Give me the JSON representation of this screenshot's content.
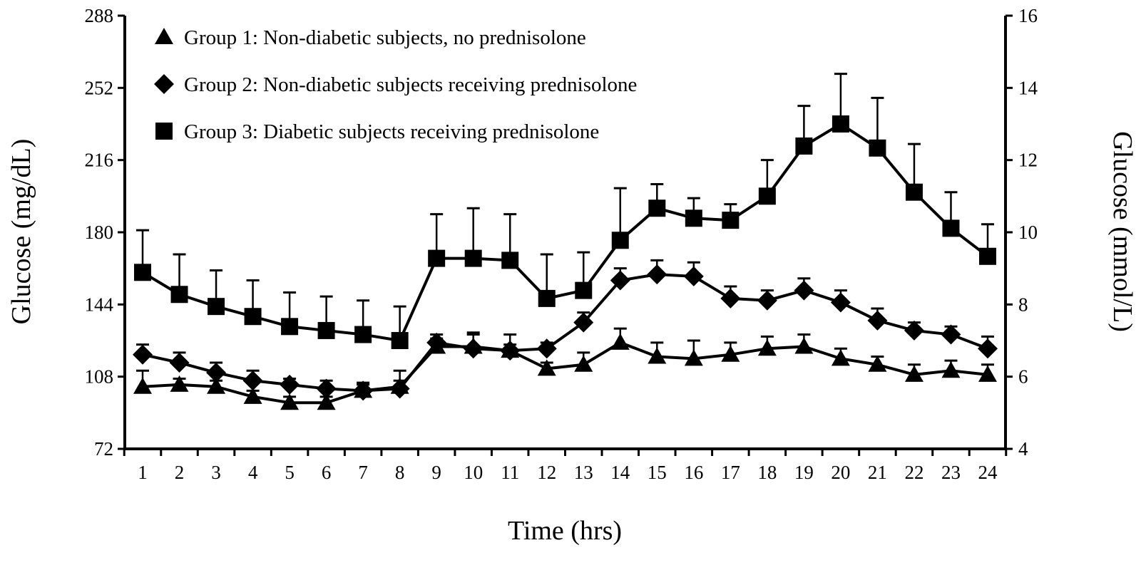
{
  "chart_data": {
    "type": "line",
    "title": "",
    "xlabel": "Time (hrs)",
    "ylabel": "Glucose (mg/dL)",
    "ylabel_right": "Glucose (mmol/L)",
    "ylim": [
      72,
      288
    ],
    "ylim_right": [
      4,
      16
    ],
    "yticks": [
      72,
      108,
      144,
      180,
      216,
      252,
      288
    ],
    "yticks_right": [
      4,
      6,
      8,
      10,
      12,
      14,
      16
    ],
    "x": [
      1,
      2,
      3,
      4,
      5,
      6,
      7,
      8,
      9,
      10,
      11,
      12,
      13,
      14,
      15,
      16,
      17,
      18,
      19,
      20,
      21,
      22,
      23,
      24
    ],
    "grid": false,
    "legend_placement": "top-left",
    "error_bars": "upper",
    "series": [
      {
        "name": "Group 1: Non-diabetic subjects, no prednisolone",
        "marker": "triangle",
        "values": [
          103,
          104,
          103,
          98,
          95,
          95,
          101,
          103,
          123,
          123,
          121,
          112,
          114,
          125,
          118,
          117,
          119,
          122,
          123,
          117,
          114,
          109,
          111,
          109
        ],
        "upper": [
          111,
          107,
          106,
          101,
          98,
          98,
          104,
          111,
          127,
          129,
          124,
          115,
          120,
          132,
          125,
          126,
          125,
          128,
          129,
          122,
          118,
          114,
          116,
          114
        ]
      },
      {
        "name": "Group 2: Non-diabetic subjects receiving prednisolone",
        "marker": "diamond",
        "values": [
          119,
          115,
          110,
          106,
          104,
          102,
          101,
          102,
          125,
          122,
          121,
          122,
          135,
          156,
          159,
          158,
          147,
          146,
          151,
          145,
          136,
          131,
          129,
          122
        ],
        "upper": [
          124,
          120,
          115,
          111,
          107,
          106,
          105,
          106,
          129,
          130,
          129,
          125,
          140,
          162,
          166,
          165,
          153,
          151,
          157,
          151,
          142,
          135,
          133,
          128
        ]
      },
      {
        "name": "Group 3: Diabetic subjects receiving prednisolone",
        "marker": "square",
        "values": [
          160,
          149,
          143,
          138,
          133,
          131,
          129,
          126,
          167,
          167,
          166,
          147,
          151,
          176,
          192,
          187,
          186,
          198,
          223,
          234,
          222,
          200,
          182,
          168
        ],
        "upper": [
          181,
          169,
          161,
          156,
          150,
          148,
          146,
          143,
          189,
          192,
          189,
          169,
          170,
          202,
          204,
          197,
          194,
          216,
          243,
          259,
          247,
          224,
          200,
          184
        ]
      }
    ]
  }
}
